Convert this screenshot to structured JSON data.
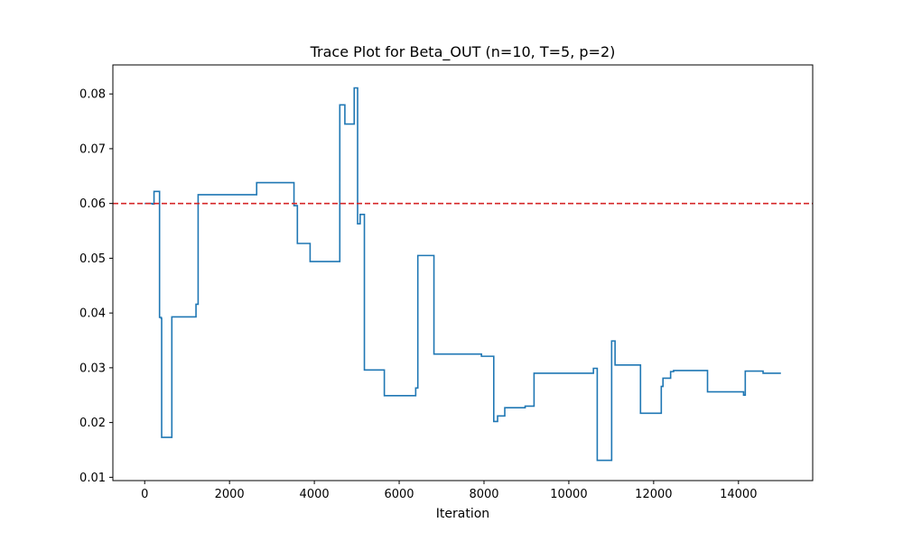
{
  "chart_data": {
    "type": "line",
    "title": "Trace Plot for Beta_OUT (n=10, T=5, p=2)",
    "xlabel": "Iteration",
    "ylabel": "",
    "xlim": [
      -750,
      15750
    ],
    "ylim": [
      0.0094,
      0.0853
    ],
    "x_ticks": [
      0,
      2000,
      4000,
      6000,
      8000,
      10000,
      12000,
      14000
    ],
    "x_tick_labels": [
      "0",
      "2000",
      "4000",
      "6000",
      "8000",
      "10000",
      "12000",
      "14000"
    ],
    "y_ticks": [
      0.01,
      0.02,
      0.03,
      0.04,
      0.05,
      0.06,
      0.07,
      0.08
    ],
    "y_tick_labels": [
      "0.01",
      "0.02",
      "0.03",
      "0.04",
      "0.05",
      "0.06",
      "0.07",
      "0.08"
    ],
    "grid": false,
    "reference_line": {
      "y": 0.06,
      "color": "#d62728",
      "style": "dashed"
    },
    "series": [
      {
        "color": "#1f77b4",
        "step": true,
        "points": [
          [
            0,
            0.06
          ],
          [
            180,
            0.0599
          ],
          [
            220,
            0.0622
          ],
          [
            330,
            0.0622
          ],
          [
            350,
            0.0392
          ],
          [
            390,
            0.039
          ],
          [
            400,
            0.0173
          ],
          [
            620,
            0.0173
          ],
          [
            640,
            0.0393
          ],
          [
            1190,
            0.0393
          ],
          [
            1210,
            0.0416
          ],
          [
            1240,
            0.0416
          ],
          [
            1260,
            0.0616
          ],
          [
            2620,
            0.0616
          ],
          [
            2640,
            0.0638
          ],
          [
            3500,
            0.0638
          ],
          [
            3520,
            0.0596
          ],
          [
            3580,
            0.0596
          ],
          [
            3600,
            0.0527
          ],
          [
            3880,
            0.0527
          ],
          [
            3900,
            0.0494
          ],
          [
            4580,
            0.0494
          ],
          [
            4600,
            0.078
          ],
          [
            4700,
            0.078
          ],
          [
            4720,
            0.0745
          ],
          [
            4920,
            0.0745
          ],
          [
            4940,
            0.0811
          ],
          [
            5000,
            0.0811
          ],
          [
            5020,
            0.0563
          ],
          [
            5060,
            0.0563
          ],
          [
            5080,
            0.058
          ],
          [
            5160,
            0.058
          ],
          [
            5180,
            0.0296
          ],
          [
            5630,
            0.0296
          ],
          [
            5650,
            0.0249
          ],
          [
            6370,
            0.0249
          ],
          [
            6390,
            0.0263
          ],
          [
            6420,
            0.0263
          ],
          [
            6440,
            0.0505
          ],
          [
            6800,
            0.0505
          ],
          [
            6820,
            0.0325
          ],
          [
            7920,
            0.0325
          ],
          [
            7940,
            0.0321
          ],
          [
            8210,
            0.0321
          ],
          [
            8230,
            0.0202
          ],
          [
            8300,
            0.0202
          ],
          [
            8320,
            0.0212
          ],
          [
            8470,
            0.0212
          ],
          [
            8490,
            0.0227
          ],
          [
            8950,
            0.0227
          ],
          [
            8970,
            0.023
          ],
          [
            9160,
            0.023
          ],
          [
            9180,
            0.029
          ],
          [
            10560,
            0.029
          ],
          [
            10580,
            0.0299
          ],
          [
            10650,
            0.0299
          ],
          [
            10670,
            0.0131
          ],
          [
            10990,
            0.0131
          ],
          [
            11010,
            0.0349
          ],
          [
            11070,
            0.0349
          ],
          [
            11090,
            0.0305
          ],
          [
            11670,
            0.0305
          ],
          [
            11690,
            0.0217
          ],
          [
            12160,
            0.0217
          ],
          [
            12180,
            0.0266
          ],
          [
            12200,
            0.0266
          ],
          [
            12220,
            0.0281
          ],
          [
            12380,
            0.0281
          ],
          [
            12400,
            0.0293
          ],
          [
            12450,
            0.0293
          ],
          [
            12470,
            0.0295
          ],
          [
            13250,
            0.0295
          ],
          [
            13270,
            0.0256
          ],
          [
            14100,
            0.0256
          ],
          [
            14120,
            0.025
          ],
          [
            14140,
            0.025
          ],
          [
            14160,
            0.0294
          ],
          [
            14560,
            0.0294
          ],
          [
            14580,
            0.029
          ],
          [
            15000,
            0.029
          ]
        ]
      }
    ]
  }
}
